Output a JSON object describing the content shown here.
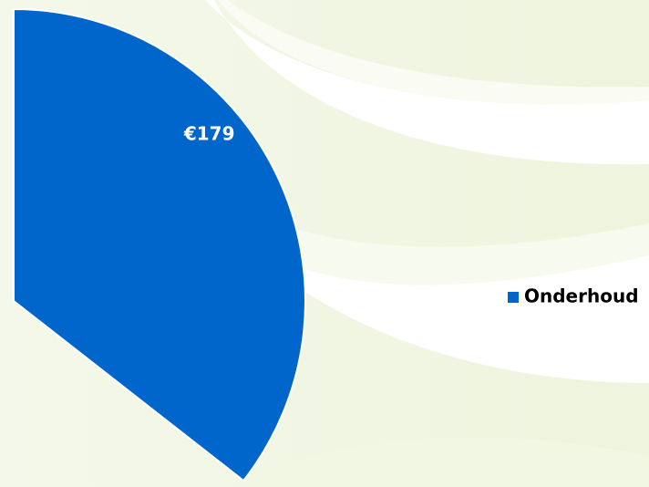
{
  "chart_data": {
    "type": "pie",
    "categories": [
      "Onderhoud"
    ],
    "values": [
      179
    ],
    "value_labels": [
      "€179"
    ],
    "colors": [
      "#0066cc"
    ],
    "legend": "right"
  }
}
